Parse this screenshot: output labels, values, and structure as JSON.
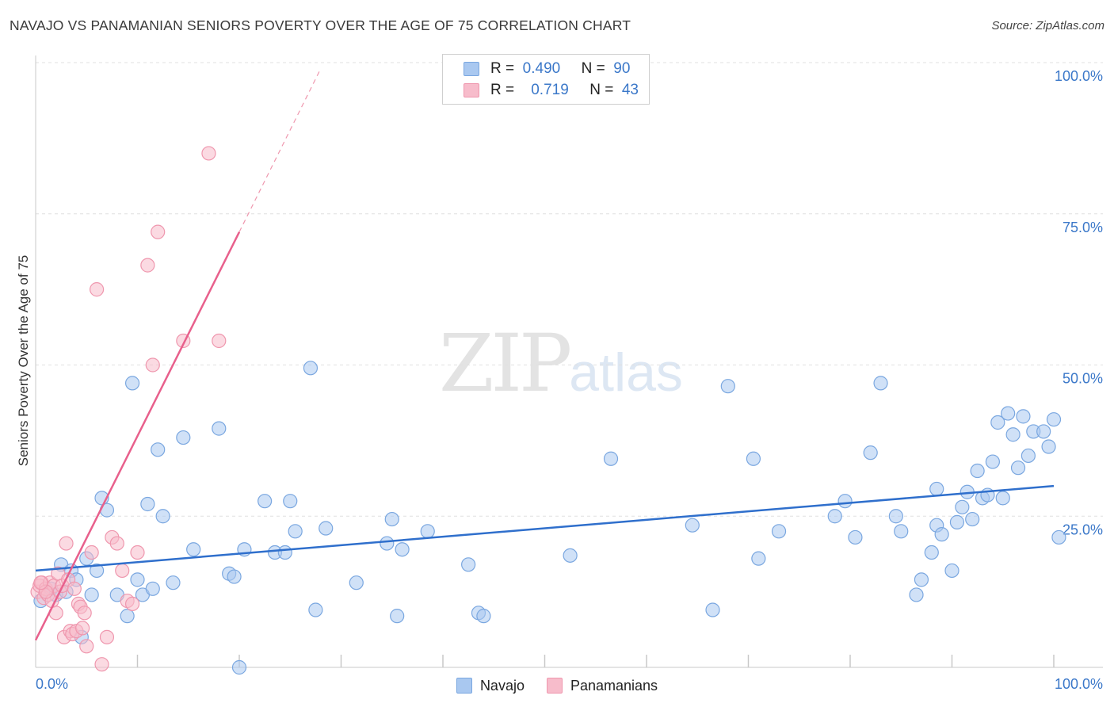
{
  "header": {
    "title": "NAVAJO VS PANAMANIAN SENIORS POVERTY OVER THE AGE OF 75 CORRELATION CHART",
    "source": "Source: ZipAtlas.com"
  },
  "watermark": {
    "zip": "ZIP",
    "atlas": "atlas"
  },
  "legend": {
    "navajo": {
      "r_label": "R =",
      "r_value": "0.490",
      "n_label": "N =",
      "n_value": "90"
    },
    "panamanians": {
      "r_label": "R =",
      "r_value": "0.719",
      "n_label": "N =",
      "n_value": "43"
    }
  },
  "colors": {
    "navajo_fill": "#a9c8f0",
    "navajo_stroke": "#7aa7e0",
    "navajo_line": "#2f6fcc",
    "panamanian_fill": "#f7bccb",
    "panamanian_stroke": "#ef97ae",
    "panamanian_line": "#e8608c",
    "tick_label": "#3b78c9",
    "grid": "#e0e0e0"
  },
  "chart_data": {
    "type": "scatter",
    "title": "NAVAJO VS PANAMANIAN SENIORS POVERTY OVER THE AGE OF 75 CORRELATION CHART",
    "xlabel": "",
    "ylabel": "Seniors Poverty Over the Age of 75",
    "xlim": [
      0,
      100
    ],
    "ylim": [
      0,
      100
    ],
    "x_tick_labels": [
      "0.0%",
      "100.0%"
    ],
    "y_ticks": [
      25,
      50,
      75,
      100
    ],
    "y_tick_labels": [
      "25.0%",
      "50.0%",
      "75.0%",
      "100.0%"
    ],
    "grid": true,
    "legend_position": "top-center",
    "series": [
      {
        "name": "Navajo",
        "regression": {
          "x": [
            0,
            100
          ],
          "y": [
            16.0,
            30.0
          ]
        },
        "points": [
          [
            0.5,
            11.0
          ],
          [
            1.0,
            12.5
          ],
          [
            1.5,
            13.0
          ],
          [
            2.0,
            12.0
          ],
          [
            2.5,
            17.0
          ],
          [
            3.0,
            12.5
          ],
          [
            3.5,
            16.0
          ],
          [
            4.0,
            14.5
          ],
          [
            4.5,
            5.0
          ],
          [
            5.0,
            18.0
          ],
          [
            5.5,
            12.0
          ],
          [
            6.0,
            16.0
          ],
          [
            6.5,
            28.0
          ],
          [
            7.0,
            26.0
          ],
          [
            8.0,
            12.0
          ],
          [
            9.0,
            8.5
          ],
          [
            9.5,
            47.0
          ],
          [
            10.0,
            14.5
          ],
          [
            10.5,
            12.0
          ],
          [
            11.0,
            27.0
          ],
          [
            11.5,
            13.0
          ],
          [
            12.0,
            36.0
          ],
          [
            12.5,
            25.0
          ],
          [
            13.5,
            14.0
          ],
          [
            14.5,
            38.0
          ],
          [
            15.5,
            19.5
          ],
          [
            18.0,
            39.5
          ],
          [
            19.0,
            15.5
          ],
          [
            19.5,
            15.0
          ],
          [
            20.0,
            0.0
          ],
          [
            20.5,
            19.5
          ],
          [
            22.5,
            27.5
          ],
          [
            23.5,
            19.0
          ],
          [
            24.5,
            19.0
          ],
          [
            25.0,
            27.5
          ],
          [
            25.5,
            22.5
          ],
          [
            27.0,
            49.5
          ],
          [
            27.5,
            9.5
          ],
          [
            28.5,
            23.0
          ],
          [
            31.5,
            14.0
          ],
          [
            34.5,
            20.5
          ],
          [
            35.0,
            24.5
          ],
          [
            35.5,
            8.5
          ],
          [
            36.0,
            19.5
          ],
          [
            38.5,
            22.5
          ],
          [
            42.5,
            17.0
          ],
          [
            43.5,
            9.0
          ],
          [
            44.0,
            8.5
          ],
          [
            52.5,
            18.5
          ],
          [
            56.5,
            34.5
          ],
          [
            64.5,
            23.5
          ],
          [
            66.5,
            9.5
          ],
          [
            68.0,
            46.5
          ],
          [
            70.5,
            34.5
          ],
          [
            71.0,
            18.0
          ],
          [
            73.0,
            22.5
          ],
          [
            78.5,
            25.0
          ],
          [
            79.5,
            27.5
          ],
          [
            80.5,
            21.5
          ],
          [
            82.0,
            35.5
          ],
          [
            83.0,
            47.0
          ],
          [
            84.5,
            25.0
          ],
          [
            85.0,
            22.5
          ],
          [
            86.5,
            12.0
          ],
          [
            87.0,
            14.5
          ],
          [
            88.0,
            19.0
          ],
          [
            88.5,
            23.5
          ],
          [
            88.5,
            29.5
          ],
          [
            89.0,
            22.0
          ],
          [
            90.0,
            16.0
          ],
          [
            90.5,
            24.0
          ],
          [
            91.0,
            26.5
          ],
          [
            91.5,
            29.0
          ],
          [
            92.0,
            24.5
          ],
          [
            92.5,
            32.5
          ],
          [
            93.0,
            28.0
          ],
          [
            93.5,
            28.5
          ],
          [
            94.0,
            34.0
          ],
          [
            94.5,
            40.5
          ],
          [
            95.0,
            28.0
          ],
          [
            95.5,
            42.0
          ],
          [
            96.0,
            38.5
          ],
          [
            96.5,
            33.0
          ],
          [
            97.0,
            41.5
          ],
          [
            97.5,
            35.0
          ],
          [
            98.0,
            39.0
          ],
          [
            99.0,
            39.0
          ],
          [
            99.5,
            36.5
          ],
          [
            100.0,
            41.0
          ],
          [
            100.5,
            21.5
          ]
        ]
      },
      {
        "name": "Panamanians",
        "regression": {
          "x": [
            0,
            20
          ],
          "y": [
            4.5,
            72.0
          ]
        },
        "regression_extension": {
          "x": [
            20,
            28
          ],
          "y": [
            72.0,
            99.0
          ]
        },
        "points": [
          [
            0.2,
            12.5
          ],
          [
            0.4,
            13.5
          ],
          [
            0.6,
            14.0
          ],
          [
            0.8,
            11.5
          ],
          [
            1.0,
            13.0
          ],
          [
            1.2,
            12.0
          ],
          [
            1.4,
            14.0
          ],
          [
            1.6,
            11.0
          ],
          [
            1.8,
            13.5
          ],
          [
            2.0,
            9.0
          ],
          [
            2.2,
            15.5
          ],
          [
            2.4,
            12.5
          ],
          [
            2.6,
            13.5
          ],
          [
            2.8,
            5.0
          ],
          [
            3.0,
            20.5
          ],
          [
            3.2,
            14.5
          ],
          [
            3.4,
            6.0
          ],
          [
            3.6,
            5.5
          ],
          [
            3.8,
            13.0
          ],
          [
            4.0,
            6.0
          ],
          [
            4.2,
            10.5
          ],
          [
            4.4,
            10.0
          ],
          [
            4.6,
            6.5
          ],
          [
            4.8,
            9.0
          ],
          [
            5.0,
            3.5
          ],
          [
            5.5,
            19.0
          ],
          [
            6.0,
            62.5
          ],
          [
            6.5,
            0.5
          ],
          [
            7.0,
            5.0
          ],
          [
            7.5,
            21.5
          ],
          [
            8.0,
            20.5
          ],
          [
            8.5,
            16.0
          ],
          [
            9.0,
            11.0
          ],
          [
            9.5,
            10.5
          ],
          [
            10.0,
            19.0
          ],
          [
            11.0,
            66.5
          ],
          [
            11.5,
            50.0
          ],
          [
            12.0,
            72.0
          ],
          [
            14.5,
            54.0
          ],
          [
            17.0,
            85.0
          ],
          [
            18.0,
            54.0
          ],
          [
            1.0,
            12.5
          ],
          [
            0.5,
            14.0
          ]
        ]
      }
    ]
  }
}
